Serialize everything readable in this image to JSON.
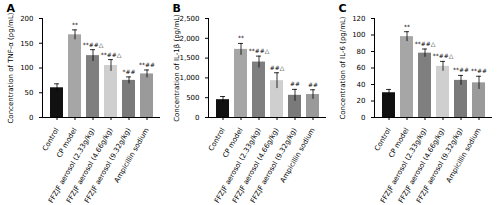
{
  "chart_data": [
    {
      "type": "bar",
      "title": "A",
      "y_label": "Concentration of TNF-α (pg/mL)",
      "categories": [
        "Control",
        "CP model",
        "FFZJF aerosol (2.33g/kg)",
        "FFZJF aerosol (4.66g/kg)",
        "FFZJF aerosol (9.32g/kg)",
        "Ampicillin sodium"
      ],
      "values": [
        60,
        167,
        125,
        105,
        75,
        88
      ],
      "errors": [
        8,
        10,
        12,
        12,
        7,
        8
      ],
      "annotations": [
        null,
        "**",
        "**##△",
        "**##△",
        "*##",
        "**##"
      ],
      "colors": [
        "#111111",
        "#a6a6a6",
        "#7f7f7f",
        "#cfcfcf",
        "#7a7a7a",
        "#9a9a9a"
      ],
      "ylim": [
        0,
        200
      ],
      "yticks": [
        0,
        50,
        100,
        150,
        200
      ]
    },
    {
      "type": "bar",
      "title": "B",
      "y_label": "Concentration of IL-1β (pg/mL)",
      "categories": [
        "Control",
        "CP model",
        "FFZJF aerosol (2.33g/kg)",
        "FFZJF aerosol (4.66g/kg)",
        "FFZJF aerosol (9.32g/kg)",
        "Ampicillin sodium"
      ],
      "values": [
        450,
        1720,
        1400,
        930,
        560,
        580
      ],
      "errors": [
        80,
        150,
        150,
        200,
        150,
        120
      ],
      "annotations": [
        null,
        "**",
        "**##△",
        "##△",
        "##",
        "##"
      ],
      "colors": [
        "#111111",
        "#a6a6a6",
        "#7f7f7f",
        "#cfcfcf",
        "#7a7a7a",
        "#9a9a9a"
      ],
      "ylim": [
        0,
        2500
      ],
      "yticks": [
        0,
        500,
        1000,
        1500,
        2000,
        2500
      ]
    },
    {
      "type": "bar",
      "title": "C",
      "y_label": "Concentration of IL-6 (pg/mL)",
      "categories": [
        "Control",
        "CP model",
        "FFZJF aerosol (2.33g/kg)",
        "FFZJF aerosol (4.66g/kg)",
        "FFZJF aerosol (9.32g/kg)",
        "Ampicillin sodium"
      ],
      "values": [
        30,
        98,
        78,
        62,
        45,
        42
      ],
      "errors": [
        4,
        6,
        5,
        6,
        6,
        8
      ],
      "annotations": [
        null,
        "**",
        "**##△",
        "**##△",
        "**##",
        "**##"
      ],
      "colors": [
        "#111111",
        "#a6a6a6",
        "#7f7f7f",
        "#cfcfcf",
        "#7a7a7a",
        "#9a9a9a"
      ],
      "ylim": [
        0,
        120
      ],
      "yticks": [
        0,
        20,
        40,
        60,
        80,
        100,
        120
      ]
    }
  ]
}
